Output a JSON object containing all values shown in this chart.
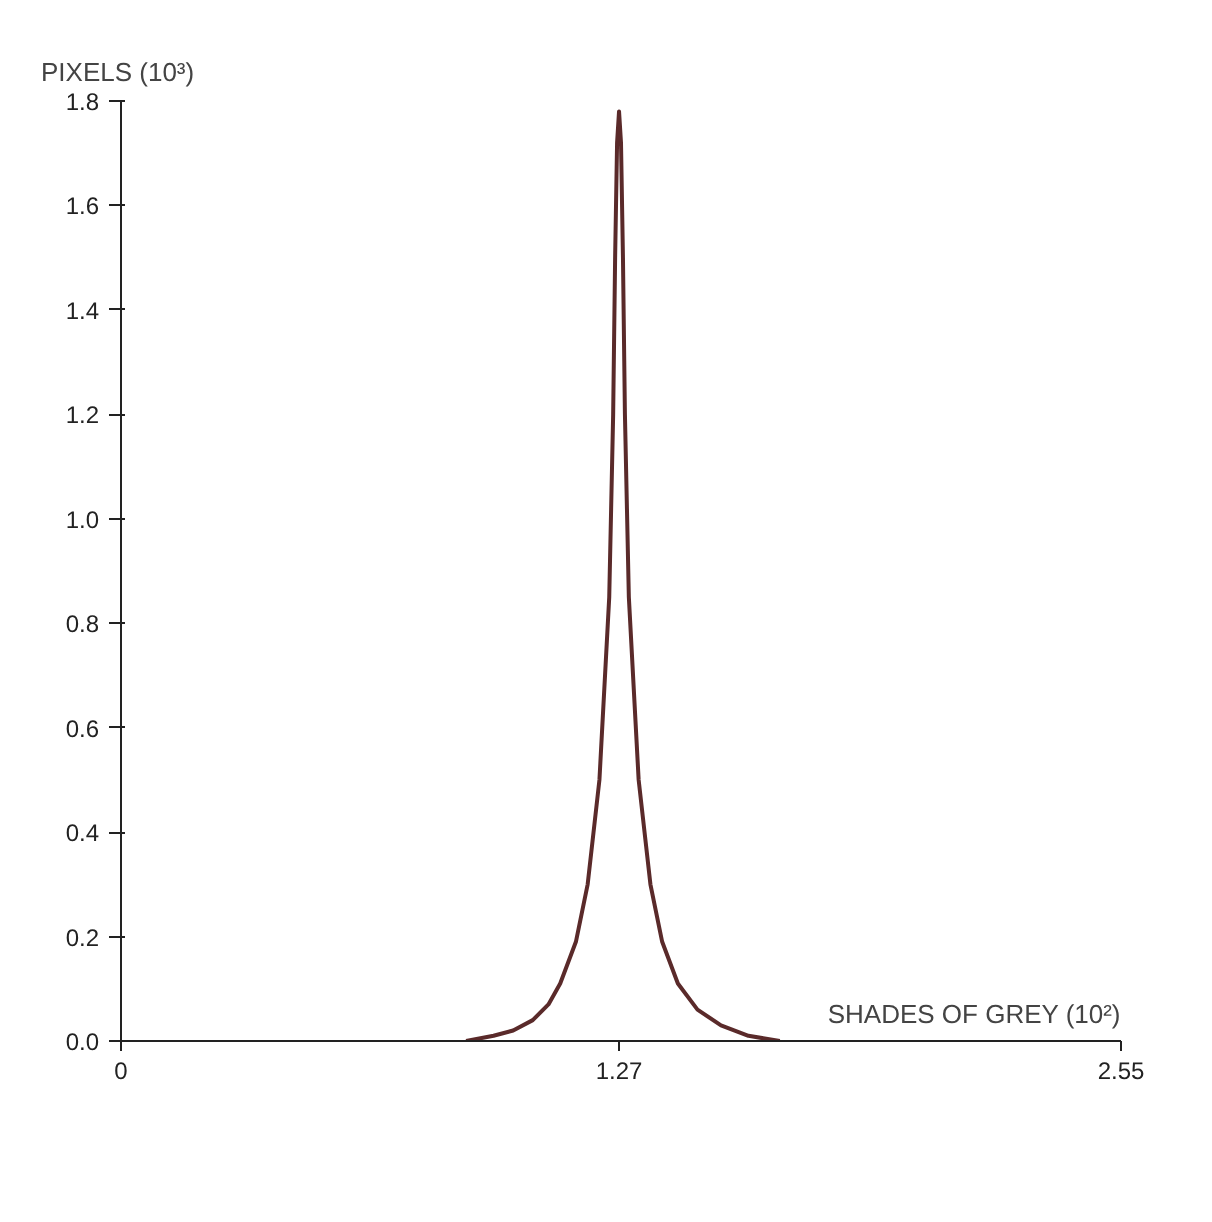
{
  "chart_data": {
    "type": "line",
    "xlabel": "SHADES OF GREY (10²)",
    "ylabel": "PIXELS (10³)",
    "x": [
      0.88,
      0.95,
      1.0,
      1.05,
      1.09,
      1.12,
      1.16,
      1.19,
      1.22,
      1.245,
      1.255,
      1.26,
      1.265,
      1.27,
      1.275,
      1.28,
      1.285,
      1.295,
      1.32,
      1.35,
      1.38,
      1.42,
      1.47,
      1.53,
      1.6,
      1.68
    ],
    "series": [
      {
        "color": "#5a2a2a",
        "values": [
          0.0,
          0.01,
          0.02,
          0.04,
          0.07,
          0.11,
          0.19,
          0.3,
          0.5,
          0.85,
          1.2,
          1.5,
          1.72,
          1.78,
          1.72,
          1.5,
          1.2,
          0.85,
          0.5,
          0.3,
          0.19,
          0.11,
          0.06,
          0.03,
          0.01,
          0.0
        ]
      }
    ],
    "xlim": [
      0,
      2.55
    ],
    "ylim": [
      0,
      1.8
    ],
    "xticks": [
      0,
      1.27,
      2.55
    ],
    "yticks": [
      {
        "value": 0,
        "label": "0.0"
      },
      {
        "value": 0.2,
        "label": "0.2"
      },
      {
        "value": 0.4,
        "label": "0.4"
      },
      {
        "value": 0.6,
        "label": "0.6"
      },
      {
        "value": 0.8,
        "label": "0.8"
      },
      {
        "value": 1.0,
        "label": "1.0"
      },
      {
        "value": 1.2,
        "label": "1.2"
      },
      {
        "value": 1.4,
        "label": "1.4"
      },
      {
        "value": 1.6,
        "label": "1.6"
      },
      {
        "value": 1.8,
        "label": "1.8"
      }
    ],
    "grid": false,
    "marker": "none",
    "line_style": "solid"
  }
}
